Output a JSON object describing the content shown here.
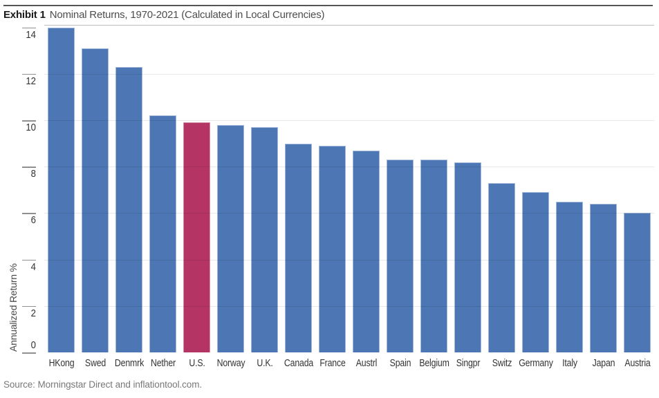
{
  "header": {
    "exhibit_label": "Exhibit 1",
    "title": "Nominal Returns, 1970-2021 (Calculated in Local Currencies)"
  },
  "source": "Source: Morningstar Direct and inflationtool.com.",
  "colors": {
    "bar_blue": "#4C76B4",
    "bar_highlight_red": "#B43563",
    "gridline": "#E3E3E3",
    "tick": "#8F8F8F",
    "title_text": "#1A1A1A",
    "source_text": "#787878"
  },
  "chart_data": {
    "type": "bar",
    "title": "Nominal Returns, 1970-2021 (Calculated in Local Currencies)",
    "categories": [
      "HKong",
      "Swed",
      "Denmrk",
      "Nether",
      "U.S.",
      "Norway",
      "U.K.",
      "Canada",
      "France",
      "Austrl",
      "Spain",
      "Belgium",
      "Singpr",
      "Switz",
      "Germany",
      "Italy",
      "Japan",
      "Austria"
    ],
    "values": [
      14.0,
      13.1,
      12.3,
      10.2,
      9.9,
      9.8,
      9.7,
      9.0,
      8.9,
      8.7,
      8.3,
      8.3,
      8.2,
      7.3,
      6.9,
      6.5,
      6.4,
      6.0
    ],
    "highlighted_category": "U.S.",
    "highlight_index": 4,
    "xlabel": "",
    "ylabel": "Annualized Return %",
    "ylim": [
      0,
      14.08
    ],
    "yticks": [
      0,
      2,
      4,
      6,
      8,
      10,
      12,
      14
    ],
    "grid_ticks": [
      2,
      4,
      6,
      8,
      10,
      12
    ],
    "grid": true,
    "legend": "none"
  }
}
